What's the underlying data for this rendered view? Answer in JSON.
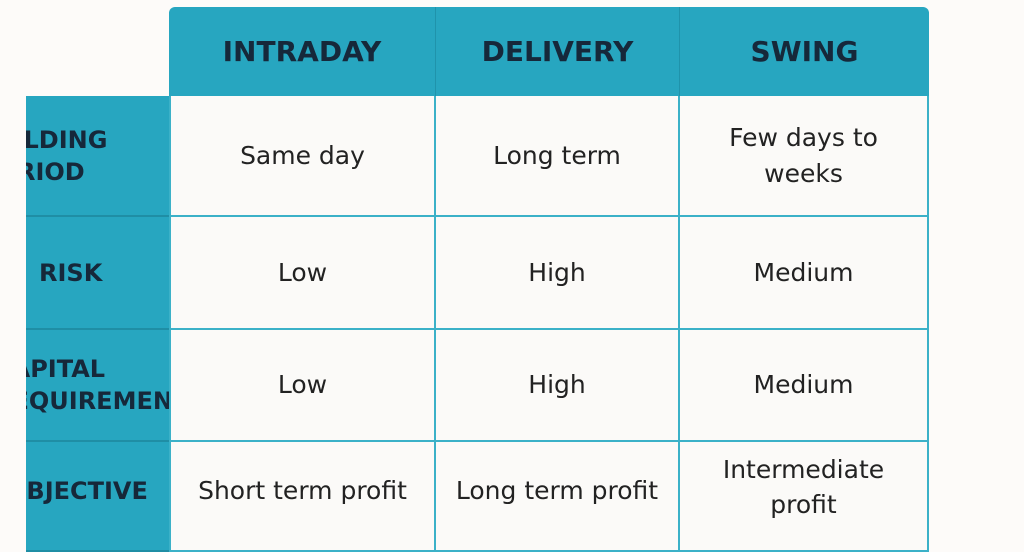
{
  "table": {
    "columns": [
      "INTRADAY",
      "DELIVERY",
      "SWING"
    ],
    "rows": [
      {
        "label": "HOLDING PERIOD",
        "cells": [
          "Same day",
          "Long term",
          "Few days to weeks"
        ]
      },
      {
        "label": "RISK",
        "cells": [
          "Low",
          "High",
          "Medium"
        ]
      },
      {
        "label": "CAPITAL REQUIREMENT",
        "cells": [
          "Low",
          "High",
          "Medium"
        ]
      },
      {
        "label": "OBJECTIVE",
        "cells": [
          "Short term profit",
          "Long term profit",
          "Intermediate profit"
        ]
      }
    ]
  },
  "colors": {
    "header": "#27a6c0",
    "text": "#16283a",
    "cell": "#fbfaf8",
    "border": "#3bb1c8"
  }
}
